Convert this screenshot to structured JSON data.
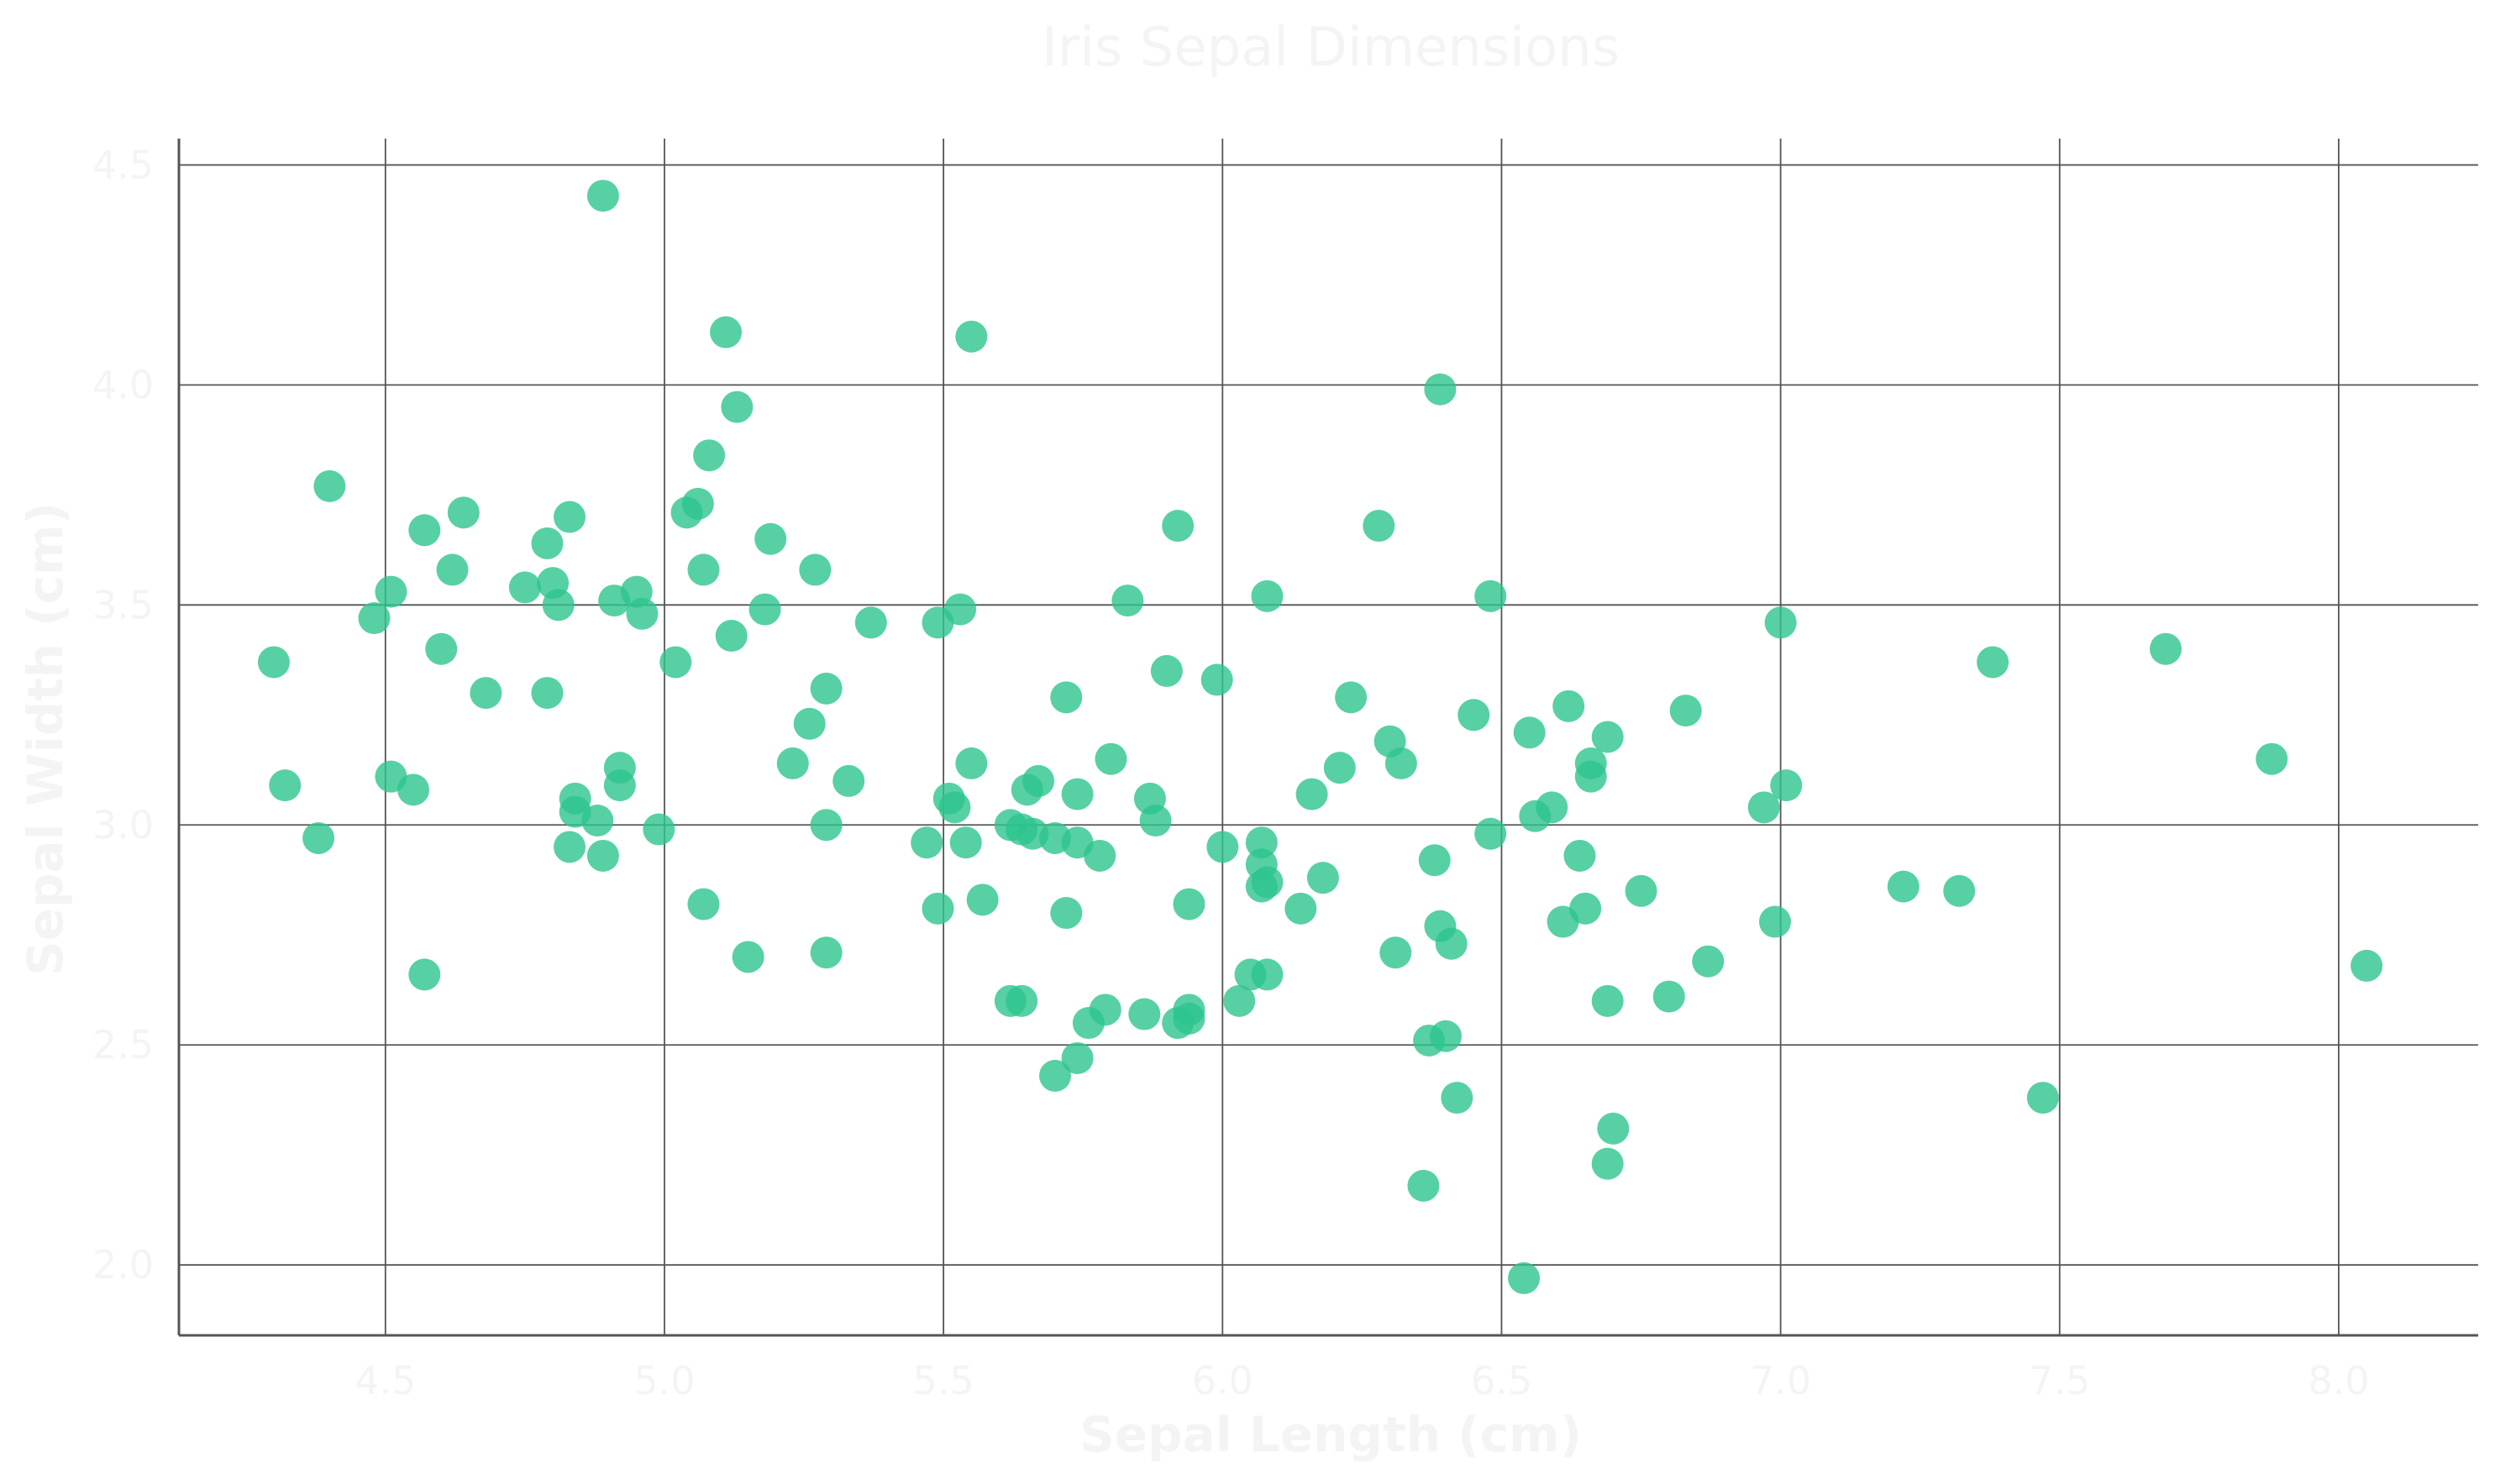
{
  "chart_data": {
    "type": "scatter",
    "title": "Iris Sepal Dimensions",
    "xlabel": "Sepal Length (cm)",
    "ylabel": "Sepal Width (cm)",
    "xlim": [
      4.13,
      8.25
    ],
    "ylim": [
      1.84,
      4.56
    ],
    "xticks": [
      "4.5",
      "5.0",
      "5.5",
      "6.0",
      "6.5",
      "7.0",
      "7.5",
      "8.0"
    ],
    "yticks": [
      "2.0",
      "2.5",
      "3.0",
      "3.5",
      "4.0",
      "4.5"
    ],
    "grid": true,
    "marker_color": "#2dc48d",
    "points": [
      [
        4.89,
        4.43
      ],
      [
        5.11,
        4.12
      ],
      [
        5.55,
        4.11
      ],
      [
        6.39,
        3.99
      ],
      [
        5.13,
        3.95
      ],
      [
        5.08,
        3.84
      ],
      [
        4.4,
        3.77
      ],
      [
        4.64,
        3.71
      ],
      [
        5.04,
        3.71
      ],
      [
        4.57,
        3.67
      ],
      [
        4.83,
        3.7
      ],
      [
        5.06,
        3.73
      ],
      [
        5.92,
        3.68
      ],
      [
        6.28,
        3.68
      ],
      [
        4.79,
        3.64
      ],
      [
        5.19,
        3.65
      ],
      [
        4.62,
        3.58
      ],
      [
        5.07,
        3.58
      ],
      [
        5.27,
        3.58
      ],
      [
        4.75,
        3.54
      ],
      [
        4.8,
        3.55
      ],
      [
        4.95,
        3.53
      ],
      [
        4.51,
        3.53
      ],
      [
        4.91,
        3.51
      ],
      [
        4.81,
        3.5
      ],
      [
        5.83,
        3.51
      ],
      [
        6.08,
        3.52
      ],
      [
        6.48,
        3.52
      ],
      [
        4.96,
        3.48
      ],
      [
        5.53,
        3.49
      ],
      [
        5.18,
        3.49
      ],
      [
        4.48,
        3.47
      ],
      [
        5.49,
        3.46
      ],
      [
        5.37,
        3.46
      ],
      [
        7.0,
        3.46
      ],
      [
        5.12,
        3.43
      ],
      [
        4.6,
        3.4
      ],
      [
        7.69,
        3.4
      ],
      [
        4.3,
        3.37
      ],
      [
        5.02,
        3.37
      ],
      [
        7.38,
        3.37
      ],
      [
        5.9,
        3.35
      ],
      [
        5.99,
        3.33
      ],
      [
        5.29,
        3.31
      ],
      [
        4.68,
        3.3
      ],
      [
        4.79,
        3.3
      ],
      [
        5.72,
        3.29
      ],
      [
        6.23,
        3.29
      ],
      [
        6.62,
        3.27
      ],
      [
        6.83,
        3.26
      ],
      [
        6.45,
        3.25
      ],
      [
        5.26,
        3.23
      ],
      [
        6.55,
        3.21
      ],
      [
        6.69,
        3.2
      ],
      [
        6.3,
        3.19
      ],
      [
        5.8,
        3.15
      ],
      [
        7.88,
        3.15
      ],
      [
        5.23,
        3.14
      ],
      [
        5.55,
        3.14
      ],
      [
        6.66,
        3.14
      ],
      [
        6.32,
        3.14
      ],
      [
        4.92,
        3.13
      ],
      [
        6.21,
        3.13
      ],
      [
        6.66,
        3.11
      ],
      [
        4.51,
        3.11
      ],
      [
        5.67,
        3.1
      ],
      [
        5.33,
        3.1
      ],
      [
        4.92,
        3.09
      ],
      [
        7.01,
        3.09
      ],
      [
        4.32,
        3.09
      ],
      [
        4.55,
        3.08
      ],
      [
        5.65,
        3.08
      ],
      [
        5.74,
        3.07
      ],
      [
        6.16,
        3.07
      ],
      [
        5.51,
        3.06
      ],
      [
        4.84,
        3.06
      ],
      [
        5.87,
        3.06
      ],
      [
        5.52,
        3.04
      ],
      [
        6.97,
        3.04
      ],
      [
        6.59,
        3.04
      ],
      [
        4.84,
        3.03
      ],
      [
        6.56,
        3.02
      ],
      [
        5.88,
        3.01
      ],
      [
        4.88,
        3.01
      ],
      [
        5.62,
        3.0
      ],
      [
        5.29,
        3.0
      ],
      [
        4.99,
        2.99
      ],
      [
        5.64,
        2.99
      ],
      [
        6.48,
        2.98
      ],
      [
        5.66,
        2.98
      ],
      [
        5.7,
        2.97
      ],
      [
        4.38,
        2.97
      ],
      [
        5.47,
        2.96
      ],
      [
        5.74,
        2.96
      ],
      [
        5.54,
        2.96
      ],
      [
        6.07,
        2.96
      ],
      [
        6.0,
        2.95
      ],
      [
        4.83,
        2.95
      ],
      [
        6.64,
        2.93
      ],
      [
        5.78,
        2.93
      ],
      [
        4.89,
        2.93
      ],
      [
        6.38,
        2.92
      ],
      [
        6.07,
        2.91
      ],
      [
        6.18,
        2.88
      ],
      [
        6.07,
        2.86
      ],
      [
        6.08,
        2.87
      ],
      [
        7.22,
        2.86
      ],
      [
        7.32,
        2.85
      ],
      [
        6.75,
        2.85
      ],
      [
        5.57,
        2.83
      ],
      [
        5.94,
        2.82
      ],
      [
        5.07,
        2.82
      ],
      [
        6.14,
        2.81
      ],
      [
        6.65,
        2.81
      ],
      [
        5.49,
        2.81
      ],
      [
        5.72,
        2.8
      ],
      [
        6.99,
        2.78
      ],
      [
        6.61,
        2.78
      ],
      [
        6.39,
        2.77
      ],
      [
        6.41,
        2.73
      ],
      [
        5.29,
        2.71
      ],
      [
        6.31,
        2.71
      ],
      [
        5.15,
        2.7
      ],
      [
        6.87,
        2.69
      ],
      [
        8.05,
        2.68
      ],
      [
        4.57,
        2.66
      ],
      [
        6.05,
        2.66
      ],
      [
        6.08,
        2.66
      ],
      [
        5.62,
        2.6
      ],
      [
        5.64,
        2.6
      ],
      [
        6.69,
        2.6
      ],
      [
        6.8,
        2.61
      ],
      [
        6.03,
        2.6
      ],
      [
        5.79,
        2.58
      ],
      [
        5.94,
        2.58
      ],
      [
        5.86,
        2.57
      ],
      [
        5.94,
        2.56
      ],
      [
        5.76,
        2.55
      ],
      [
        5.92,
        2.55
      ],
      [
        6.37,
        2.51
      ],
      [
        6.4,
        2.52
      ],
      [
        5.74,
        2.47
      ],
      [
        5.7,
        2.43
      ],
      [
        7.47,
        2.38
      ],
      [
        6.42,
        2.38
      ],
      [
        6.7,
        2.31
      ],
      [
        6.69,
        2.23
      ],
      [
        6.36,
        2.18
      ],
      [
        6.54,
        1.97
      ]
    ]
  }
}
